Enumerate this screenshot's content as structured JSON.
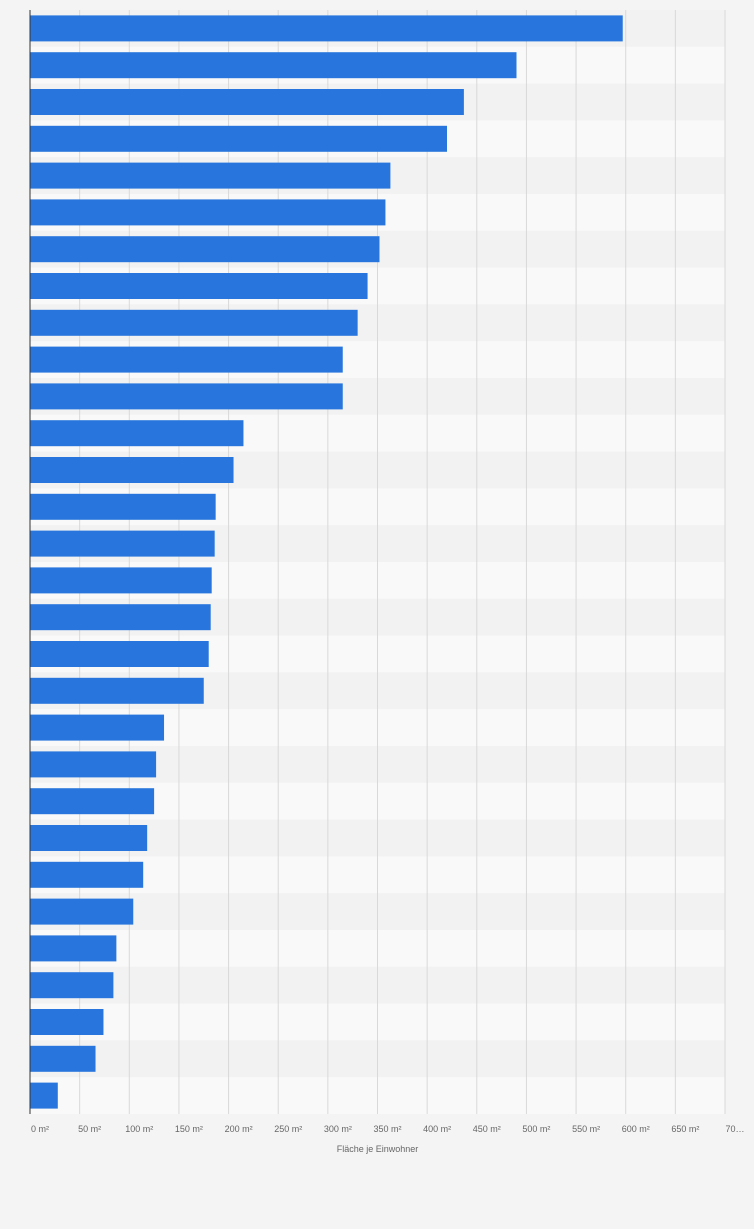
{
  "colors": {
    "background": "#f4f4f4",
    "band_light": "#f9f9f9",
    "band_dark": "#f2f2f2",
    "bar": "#2876dd",
    "gridline": "#d9d9d9",
    "axis": "#333333",
    "tick_text": "#666666"
  },
  "chart_data": {
    "type": "bar",
    "orientation": "horizontal",
    "xlabel": "Fläche je Einwohner",
    "xlim": [
      0,
      700
    ],
    "grid": true,
    "legend": "none",
    "x_ticks": [
      {
        "value": 0,
        "label": "0 m²"
      },
      {
        "value": 50,
        "label": "50 m²"
      },
      {
        "value": 100,
        "label": "100 m²"
      },
      {
        "value": 150,
        "label": "150 m²"
      },
      {
        "value": 200,
        "label": "200 m²"
      },
      {
        "value": 250,
        "label": "250 m²"
      },
      {
        "value": 300,
        "label": "300 m²"
      },
      {
        "value": 350,
        "label": "350 m²"
      },
      {
        "value": 400,
        "label": "400 m²"
      },
      {
        "value": 450,
        "label": "450 m²"
      },
      {
        "value": 500,
        "label": "500 m²"
      },
      {
        "value": 550,
        "label": "550 m²"
      },
      {
        "value": 600,
        "label": "600 m²"
      },
      {
        "value": 650,
        "label": "650 m²"
      },
      {
        "value": 700,
        "label": "70…"
      }
    ],
    "values": [
      597,
      490,
      437,
      420,
      363,
      358,
      352,
      340,
      330,
      315,
      315,
      215,
      205,
      187,
      186,
      183,
      182,
      180,
      175,
      135,
      127,
      125,
      118,
      114,
      104,
      87,
      84,
      74,
      66,
      28
    ]
  }
}
